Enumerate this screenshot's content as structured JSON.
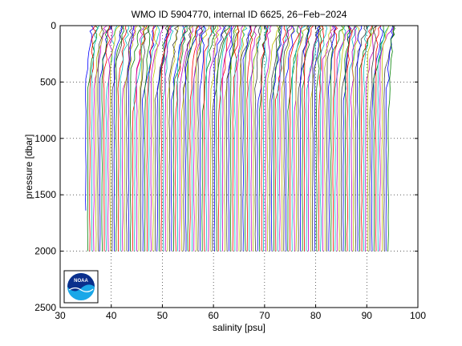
{
  "chart_data": {
    "type": "line",
    "title": "WMO ID 5904770, internal ID 6625, 26−Feb−2024",
    "xlabel": "salinity [psu]",
    "ylabel": "pressure [dbar]",
    "xlim": [
      30,
      100
    ],
    "ylim": [
      0,
      2500
    ],
    "y_reversed": true,
    "grid": "dotted",
    "xticks": [
      30,
      40,
      50,
      60,
      70,
      80,
      90,
      100
    ],
    "yticks": [
      0,
      500,
      1000,
      1500,
      2000,
      2500
    ],
    "series_colors": [
      "#0000ff",
      "#008000",
      "#ff0000",
      "#00bfbf",
      "#bf00bf",
      "#bfbf00",
      "#404040"
    ],
    "profiles": {
      "offset_start": 35,
      "offset_end": 94.4,
      "offset_step": 0.4,
      "deep_pressure": 2000,
      "first_profile_deep_pressure": 1640,
      "shallow_salinity_range": [
        0.6,
        2.6
      ],
      "deep_salinity": 34.9
    }
  },
  "logo": {
    "text": "NOAA"
  }
}
